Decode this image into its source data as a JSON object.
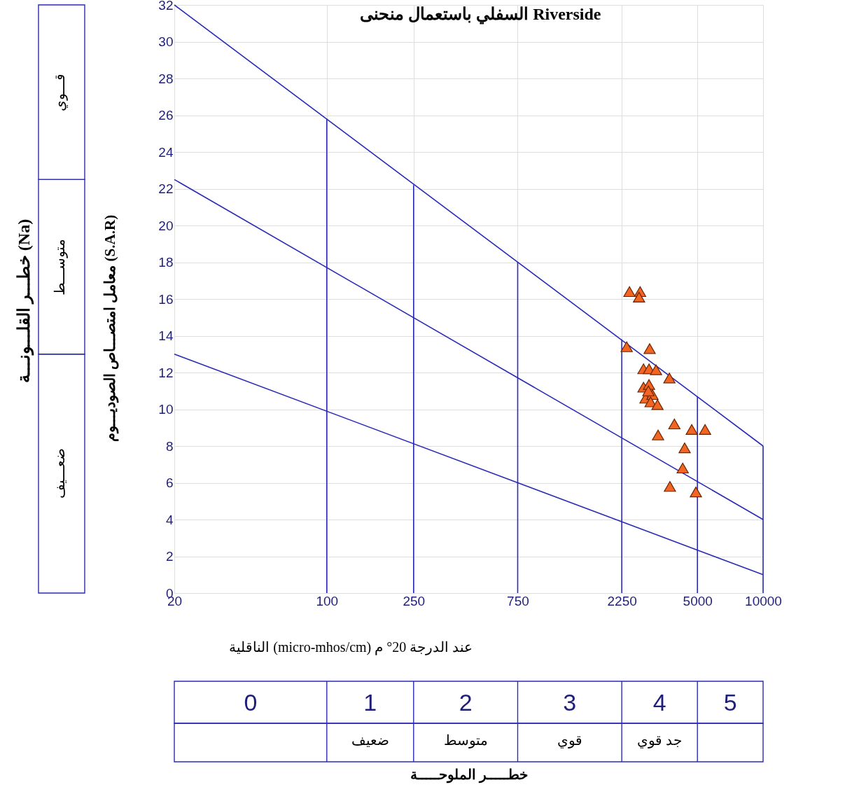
{
  "chart_data": {
    "type": "scatter",
    "title": "السفلي  باستعمال منحنى Riverside",
    "xlabel": "الناقلية (micro-mhos/cm) عند الدرجة 20° م",
    "ylabel": "معامل امتصـــاص الصوديـــوم (S.A.R)",
    "log": "x",
    "xlim": [
      20,
      10000
    ],
    "xticks": [
      20,
      100,
      250,
      750,
      2250,
      5000,
      10000
    ],
    "ylim": [
      0,
      32
    ],
    "yticks": [
      0,
      2,
      4,
      6,
      8,
      10,
      12,
      14,
      16,
      18,
      20,
      22,
      24,
      26,
      28,
      30,
      32
    ],
    "grid": true,
    "series": [
      {
        "type": "line",
        "color": "#2b2bb5",
        "x": [
          20,
          10000
        ],
        "values": [
          32,
          8
        ]
      },
      {
        "type": "line",
        "color": "#2b2bb5",
        "x": [
          20,
          10000
        ],
        "values": [
          22.5,
          4
        ]
      },
      {
        "type": "line",
        "color": "#2b2bb5",
        "x": [
          20,
          10000
        ],
        "values": [
          13,
          1
        ]
      },
      {
        "type": "line",
        "color": "#2b2bb5",
        "x": [
          100,
          100
        ],
        "values": [
          0,
          25.8
        ]
      },
      {
        "type": "line",
        "color": "#2b2bb5",
        "x": [
          250,
          250
        ],
        "values": [
          0,
          22.2
        ]
      },
      {
        "type": "line",
        "color": "#2b2bb5",
        "x": [
          750,
          750
        ],
        "values": [
          0,
          18.0
        ]
      },
      {
        "type": "line",
        "color": "#2b2bb5",
        "x": [
          2250,
          2250
        ],
        "values": [
          0,
          13.8
        ]
      },
      {
        "type": "line",
        "color": "#2b2bb5",
        "x": [
          5000,
          5000
        ],
        "values": [
          0,
          10.7
        ]
      },
      {
        "type": "line",
        "color": "#2b2bb5",
        "x": [
          10000,
          10000
        ],
        "values": [
          0,
          8
        ]
      },
      {
        "color": "#f26522",
        "marker": "triangle",
        "x": [
          2440,
          2730,
          2700,
          2370,
          3020,
          2830,
          3000,
          3230,
          3720,
          2830,
          3000,
          2890,
          3110,
          3050,
          3280,
          2980,
          3920,
          4710,
          5420,
          3300,
          4370,
          4280,
          3740,
          4920
        ],
        "values": [
          16.4,
          16.4,
          16.1,
          13.4,
          13.3,
          12.2,
          12.2,
          12.15,
          11.7,
          11.2,
          11.35,
          10.6,
          10.8,
          10.4,
          10.25,
          11.0,
          9.2,
          8.9,
          8.9,
          8.6,
          7.9,
          6.8,
          5.8,
          5.5
        ]
      }
    ],
    "annotations": [
      "خطـــر القلـــونـــة (Na)",
      "قـــوي",
      "متوســـط",
      "ضعـــيف",
      "0",
      "1",
      "2",
      "3",
      "4",
      "5",
      "ضعيف",
      "متوسط",
      "قوي",
      "جد قوي",
      "خطـــــر الملوحـــــة"
    ]
  }
}
